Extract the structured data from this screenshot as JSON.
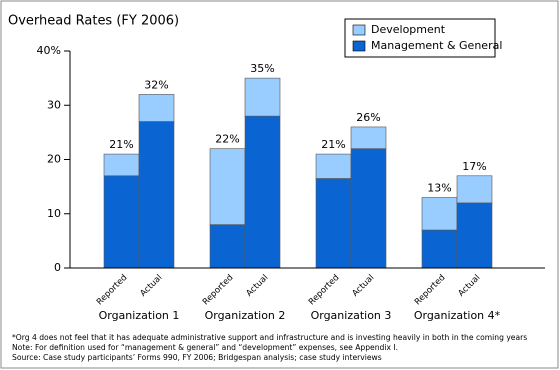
{
  "chart_data": {
    "type": "stacked_bar",
    "title": "Overhead Rates (FY 2006)",
    "groups": [
      "Organization 1",
      "Organization 2",
      "Organization 3",
      "Organization 4*"
    ],
    "categories": [
      "Reported",
      "Actual",
      "Reported",
      "Actual",
      "Reported",
      "Actual",
      "Reported",
      "Actual"
    ],
    "series": [
      {
        "name": "Management & General",
        "color": "#0a64d2",
        "values": [
          17,
          27,
          8,
          28,
          16.5,
          22,
          7,
          12
        ]
      },
      {
        "name": "Development",
        "color": "#99ccff",
        "values": [
          4,
          5,
          14,
          7,
          4.5,
          4,
          6,
          5
        ]
      }
    ],
    "totals": [
      21,
      32,
      22,
      35,
      21,
      26,
      13,
      17
    ],
    "total_labels": [
      "21%",
      "32%",
      "22%",
      "35%",
      "21%",
      "26%",
      "13%",
      "17%"
    ],
    "ylim": [
      0,
      40
    ],
    "yticks": [
      0,
      10,
      20,
      30,
      {
        "value": 40,
        "label": "40%"
      }
    ],
    "notes": [
      "*Org 4 does not feel that it has adequate administrative support and infrastructure and is investing heavily in both in the coming years",
      "Note: For definition used for “management & general” and “development” expenses, see Appendix I.",
      "Source: Case study participants’ Forms 990, FY 2006; Bridgespan analysis; case study interviews"
    ]
  }
}
